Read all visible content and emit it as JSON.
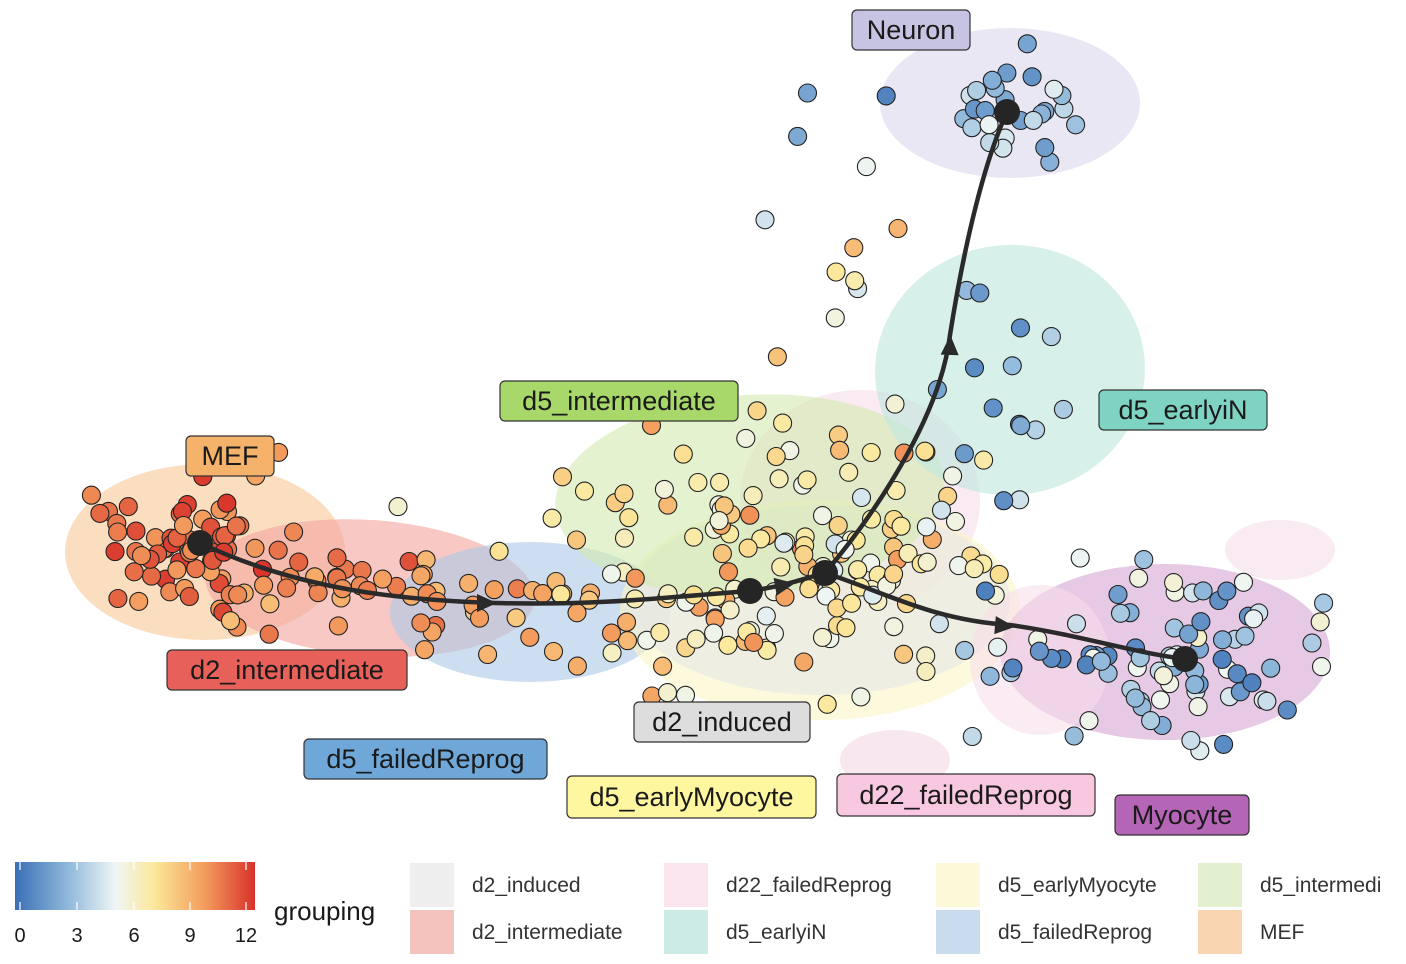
{
  "chart_data": {
    "type": "scatter",
    "description_free": true,
    "clusters": [
      {
        "name": "MEF",
        "label": "MEF",
        "color": "#F5B26B",
        "fill": "#F9C89A"
      },
      {
        "name": "d2_intermediate",
        "label": "d2_intermediate",
        "color": "#E8605A",
        "fill": "#F2A7A0"
      },
      {
        "name": "d5_failedReprog",
        "label": "d5_failedReprog",
        "color": "#6FA8D8",
        "fill": "#AFC9E6"
      },
      {
        "name": "d2_induced",
        "label": "d2_induced",
        "color": "#DDDDDD",
        "fill": "#E6E6E6"
      },
      {
        "name": "d5_intermediate",
        "label": "d5_intermediate",
        "color": "#A8D86A",
        "fill": "#D3EAB2"
      },
      {
        "name": "d5_earlyMyocyte",
        "label": "d5_earlyMyocyte",
        "color": "#FFF7A0",
        "fill": "#FBF6C8"
      },
      {
        "name": "d22_failedReprog",
        "label": "d22_failedReprog",
        "color": "#F8C8E0",
        "fill": "#F7DDEA"
      },
      {
        "name": "d5_earlyiN",
        "label": "d5_earlyiN",
        "color": "#7FD3C3",
        "fill": "#BFE6DD"
      },
      {
        "name": "Neuron",
        "label": "Neuron",
        "color": "#C7C3E2",
        "fill": "#DCD8EC"
      },
      {
        "name": "Myocyte",
        "label": "Myocyte",
        "color": "#B565B5",
        "fill": "#D7A8D5"
      }
    ],
    "trajectory": {
      "nodes": [
        "MEF",
        "d2_intermediate",
        "d5_failedReprog",
        "d2_induced",
        "branch",
        "Neuron",
        "Myocyte"
      ]
    },
    "colorbar": {
      "title": "",
      "ticks": [
        "0",
        "3",
        "6",
        "9",
        "12"
      ],
      "min": 0,
      "max": 12,
      "colors": [
        "#3A6FB5",
        "#8FB8DB",
        "#EEF6F4",
        "#FBE89A",
        "#F4A160",
        "#D8322A"
      ]
    },
    "legend": {
      "title": "grouping",
      "items": [
        "d2_induced",
        "d22_failedReprog",
        "d5_earlyMyocyte",
        "d5_intermedi",
        "d2_intermediate",
        "d5_earlyiN",
        "d5_failedReprog",
        "MEF"
      ]
    }
  }
}
